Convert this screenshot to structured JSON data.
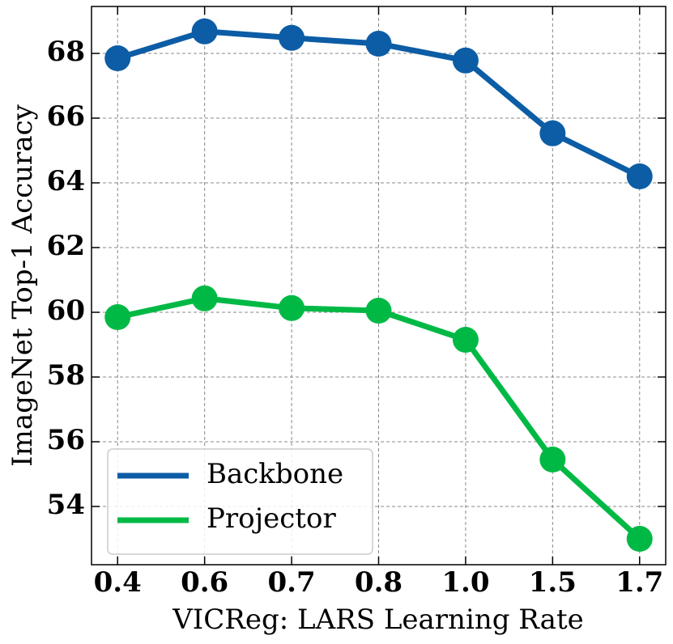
{
  "chart_data": {
    "type": "line",
    "x_label": "VICReg: LARS Learning Rate",
    "y_label": "ImageNet Top-1 Accuracy",
    "categories": [
      "0.4",
      "0.6",
      "0.7",
      "0.8",
      "1.0",
      "1.5",
      "1.7"
    ],
    "series": [
      {
        "name": "Backbone",
        "color": "#0C5DA5",
        "values": [
          67.85,
          68.68,
          68.48,
          68.3,
          67.78,
          65.53,
          64.2
        ]
      },
      {
        "name": "Projector",
        "color": "#00B945",
        "values": [
          59.85,
          60.43,
          60.13,
          60.05,
          59.15,
          55.45,
          53.0
        ]
      }
    ],
    "ylim": [
      52.2,
      69.45
    ],
    "yticks": [
      54,
      56,
      58,
      60,
      62,
      64,
      66,
      68
    ],
    "grid": true,
    "legend": "lower left"
  }
}
